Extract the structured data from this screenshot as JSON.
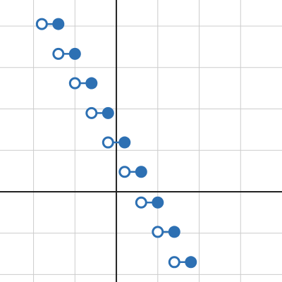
{
  "chart_data": {
    "type": "step",
    "color": "#2d70b3",
    "xlim": [
      -2.81,
      4.0
    ],
    "ylim": [
      -2.18,
      4.63
    ],
    "xticks": [
      -2,
      -1,
      0,
      1,
      2,
      3
    ],
    "yticks": [
      -2,
      -1,
      0,
      1,
      2,
      3,
      4
    ],
    "grid": true,
    "segments": [
      {
        "x": [
          -1.8,
          -1.4
        ],
        "y": 4.05
      },
      {
        "x": [
          -1.4,
          -1.0
        ],
        "y": 3.33
      },
      {
        "x": [
          -1.0,
          -0.6
        ],
        "y": 2.62
      },
      {
        "x": [
          -0.6,
          -0.2
        ],
        "y": 1.9
      },
      {
        "x": [
          -0.2,
          0.2
        ],
        "y": 1.19
      },
      {
        "x": [
          0.2,
          0.6
        ],
        "y": 0.48
      },
      {
        "x": [
          0.6,
          1.0
        ],
        "y": -0.26
      },
      {
        "x": [
          1.0,
          1.4
        ],
        "y": -0.97
      },
      {
        "x": [
          1.4,
          1.8
        ],
        "y": -1.7
      }
    ]
  }
}
